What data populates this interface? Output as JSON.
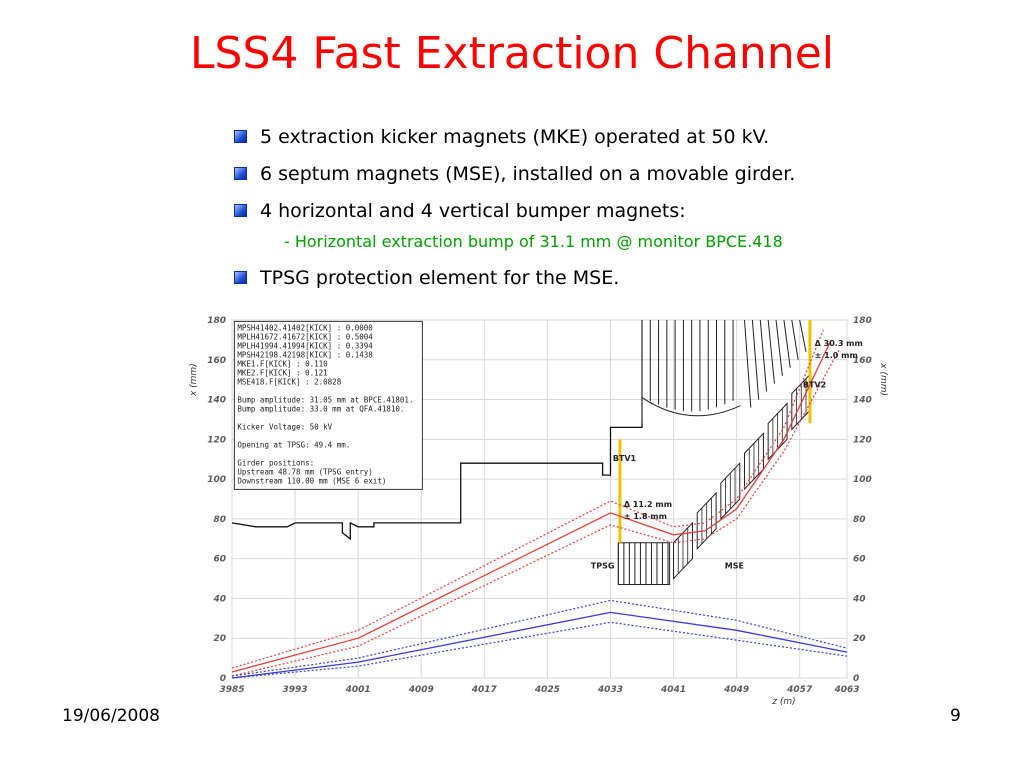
{
  "slide": {
    "title": "LSS4 Fast Extraction Channel",
    "bullets": [
      "5 extraction kicker magnets (MKE) operated at 50 kV.",
      "6 septum magnets (MSE), installed on a movable girder.",
      "4 horizontal and 4 vertical bumper magnets:"
    ],
    "sub_bullet": "- Horizontal extraction bump of 31.1 mm @ monitor BPCE.418",
    "last_bullet": "TPSG protection element for the MSE.",
    "footer_date": "19/06/2008",
    "page_number": "9"
  },
  "chart_data": {
    "type": "line",
    "xlabel": "z (m)",
    "ylabel": "x (mm)",
    "xlim": [
      3985,
      4063
    ],
    "ylim": [
      0,
      180
    ],
    "x_ticks": [
      "3985",
      "3993",
      "4001",
      "4009",
      "4017",
      "4025",
      "4033",
      "4041",
      "4049",
      "4057",
      "4063"
    ],
    "y_ticks": [
      "0",
      "20",
      "40",
      "60",
      "80",
      "100",
      "120",
      "140",
      "160",
      "180"
    ],
    "grid": true,
    "info_box": [
      "MPSH41402.41402[KICK] : 0.0000",
      "MPLH41672.41672[KICK] : 0.5004",
      "MPLH41994.41994[KICK] : 0.3394",
      "MPSH42198.42198[KICK] : 0.1438",
      "MKE1.F[KICK] : 0.110",
      "MKE2.F[KICK] : 0.121",
      "MSE418.F[KICK] : 2.0828",
      "",
      "Bump amplitude: 31.05 mm at BPCE.41801.",
      "Bump amplitude: 33.0 mm at QFA.41810.",
      "",
      "Kicker Voltage: 50 kV",
      "",
      "Opening at TPSG: 49.4 mm.",
      "",
      "Girder positions:",
      "Upstream 48.78 mm (TPSG entry)",
      "Downstream 110.00 mm (MSE 6 exit)"
    ],
    "labels": {
      "btv1": "BTV1",
      "btv2": "BTV2",
      "tpsg": "TPSG",
      "mse": "MSE",
      "btv1_a": "Δ 11.2 mm",
      "btv1_b": "± 1.8 mm",
      "btv2_a": "Δ 30.3 mm",
      "btv2_b": "± 1.0 mm"
    },
    "series": [
      {
        "name": "",
        "color": "#e83c3c",
        "style": "solid",
        "points": [
          [
            3985,
            3
          ],
          [
            4001,
            20
          ],
          [
            4033,
            83
          ],
          [
            4041,
            72
          ],
          [
            4045,
            74
          ],
          [
            4049,
            85
          ],
          [
            4055,
            120
          ],
          [
            4061,
            170
          ]
        ]
      },
      {
        "name": "",
        "color": "#e83c3c",
        "style": "dotted",
        "points": [
          [
            3985,
            5
          ],
          [
            4001,
            24
          ],
          [
            4033,
            89
          ],
          [
            4041,
            76
          ],
          [
            4045,
            78
          ],
          [
            4049,
            90
          ],
          [
            4055,
            126
          ],
          [
            4060,
            175
          ]
        ]
      },
      {
        "name": "",
        "color": "#e83c3c",
        "style": "dotted",
        "points": [
          [
            3985,
            1
          ],
          [
            4001,
            16
          ],
          [
            4033,
            77
          ],
          [
            4041,
            68
          ],
          [
            4045,
            70
          ],
          [
            4049,
            80
          ],
          [
            4055,
            114
          ],
          [
            4062,
            165
          ]
        ]
      },
      {
        "name": "",
        "color": "#3a3ad8",
        "style": "solid",
        "points": [
          [
            3985,
            0
          ],
          [
            4001,
            8
          ],
          [
            4033,
            33
          ],
          [
            4049,
            24
          ],
          [
            4063,
            13
          ]
        ]
      },
      {
        "name": "",
        "color": "#3a3ad8",
        "style": "dotted",
        "points": [
          [
            3985,
            1
          ],
          [
            4001,
            10
          ],
          [
            4033,
            39
          ],
          [
            4049,
            29
          ],
          [
            4063,
            15
          ]
        ]
      },
      {
        "name": "",
        "color": "#3a3ad8",
        "style": "dotted",
        "points": [
          [
            3985,
            0
          ],
          [
            4001,
            6
          ],
          [
            4033,
            28
          ],
          [
            4049,
            19
          ],
          [
            4063,
            11
          ]
        ]
      },
      {
        "name": "",
        "color": "#111111",
        "style": "solid",
        "points": [
          [
            3985,
            78
          ],
          [
            3988,
            76
          ],
          [
            3992,
            76
          ],
          [
            3993,
            78
          ],
          [
            3999,
            78
          ],
          [
            3999,
            73
          ],
          [
            4000,
            70
          ],
          [
            4000,
            78
          ],
          [
            4001,
            76
          ],
          [
            4003,
            76
          ],
          [
            4003,
            78
          ],
          [
            4014,
            78
          ],
          [
            4014,
            108
          ],
          [
            4032,
            108
          ],
          [
            4032,
            102
          ],
          [
            4033,
            102
          ],
          [
            4033,
            126
          ],
          [
            4037,
            126
          ],
          [
            4037,
            180
          ]
        ]
      }
    ],
    "aperture_lines": [
      {
        "color": "#444444",
        "points": [
          [
            4037,
            180
          ],
          [
            4037,
            128
          ]
        ]
      }
    ]
  }
}
